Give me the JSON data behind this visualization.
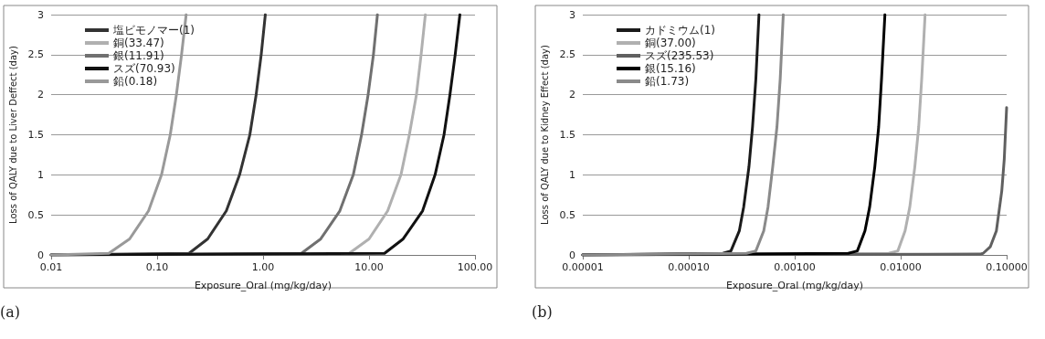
{
  "chart_data": [
    {
      "type": "line",
      "xlabel": "Exposure_Oral (mg/kg/day)",
      "ylabel": "Loss of QALY due to Liver Deffect (day)",
      "annotations": [
        "(a)"
      ],
      "log": "x",
      "grid": "y",
      "legend": "top left",
      "marker": "none",
      "line_style": "solid",
      "xlim": [
        0.01,
        100
      ],
      "xticks": [
        {
          "value": 0.01,
          "label": "0.01"
        },
        {
          "value": 0.1,
          "label": "0.10"
        },
        {
          "value": 1,
          "label": "1.00"
        },
        {
          "value": 10,
          "label": "10.00"
        },
        {
          "value": 100,
          "label": "100.00"
        }
      ],
      "ylim": [
        0,
        3
      ],
      "yticks": [
        0,
        0.5,
        1,
        1.5,
        2,
        2.5,
        3
      ],
      "series": [
        {
          "name": "塩ビモノマー(1)",
          "color": "#333333",
          "x": [
            0.01,
            0.2,
            0.3,
            0.45,
            0.6,
            0.75,
            0.86,
            0.96,
            1.05
          ],
          "values": [
            0,
            0.02,
            0.2,
            0.55,
            1,
            1.5,
            2,
            2.5,
            3
          ]
        },
        {
          "name": "銅(33.47)",
          "color": "#b0b0b0",
          "x": [
            6.5,
            10,
            15,
            20,
            24,
            28,
            31,
            34
          ],
          "values": [
            0.02,
            0.2,
            0.55,
            1,
            1.5,
            2,
            2.5,
            3
          ]
        },
        {
          "name": "銀(11.91)",
          "color": "#707070",
          "x": [
            0.01,
            2.3,
            3.5,
            5.3,
            7.1,
            8.5,
            9.8,
            11,
            12
          ],
          "values": [
            0,
            0.02,
            0.2,
            0.55,
            1,
            1.5,
            2,
            2.5,
            3
          ]
        },
        {
          "name": "スズ(70.93)",
          "color": "#111111",
          "x": [
            0.01,
            14,
            21,
            32,
            42,
            51,
            58,
            65,
            72
          ],
          "values": [
            0,
            0.02,
            0.2,
            0.55,
            1,
            1.5,
            2,
            2.5,
            3
          ]
        },
        {
          "name": "鉛(0.18)",
          "color": "#999999",
          "x": [
            0.01,
            0.035,
            0.055,
            0.083,
            0.11,
            0.133,
            0.152,
            0.17,
            0.188
          ],
          "values": [
            0,
            0.02,
            0.2,
            0.55,
            1,
            1.5,
            2,
            2.5,
            3
          ]
        }
      ]
    },
    {
      "type": "line",
      "xlabel": "Exposure_Oral (mg/kg/day)",
      "ylabel": "Loss of QALY due to Kidney Effect (day)",
      "annotations": [
        "(b)"
      ],
      "log": "x",
      "grid": "y",
      "legend": "top left",
      "marker": "none",
      "line_style": "solid",
      "xlim": [
        1e-05,
        0.1
      ],
      "xticks": [
        {
          "value": 1e-05,
          "label": "0.00001"
        },
        {
          "value": 0.0001,
          "label": "0.00010"
        },
        {
          "value": 0.001,
          "label": "0.00100"
        },
        {
          "value": 0.01,
          "label": "0.01000"
        },
        {
          "value": 0.1,
          "label": "0.10000"
        }
      ],
      "ylim": [
        0,
        3
      ],
      "yticks": [
        0,
        0.5,
        1,
        1.5,
        2,
        2.5,
        3
      ],
      "series": [
        {
          "name": "カドミウム(1)",
          "color": "#1a1a1a",
          "x": [
            1e-05,
            0.00021,
            0.00025,
            0.0003,
            0.00033,
            0.00037,
            0.0004,
            0.00043,
            0.00046
          ],
          "values": [
            0,
            0.02,
            0.05,
            0.3,
            0.6,
            1.1,
            1.6,
            2.2,
            3
          ]
        },
        {
          "name": "銅(37.00)",
          "color": "#b0b0b0",
          "x": [
            1e-05,
            0.0077,
            0.0094,
            0.011,
            0.0122,
            0.0136,
            0.0148,
            0.0158,
            0.017
          ],
          "values": [
            0,
            0.02,
            0.05,
            0.3,
            0.6,
            1.1,
            1.6,
            2.2,
            3
          ]
        },
        {
          "name": "スズ(235.53)",
          "color": "#606060",
          "x": [
            1e-05,
            0.056,
            0.06,
            0.07,
            0.08,
            0.09,
            0.095,
            0.1
          ],
          "values": [
            0,
            0.01,
            0.02,
            0.1,
            0.3,
            0.8,
            1.2,
            1.84
          ]
        },
        {
          "name": "銀(15.16)",
          "color": "#000000",
          "x": [
            1e-05,
            0.0032,
            0.0039,
            0.0046,
            0.0051,
            0.0057,
            0.0062,
            0.0066,
            0.0071
          ],
          "values": [
            0,
            0.02,
            0.05,
            0.3,
            0.6,
            1.1,
            1.6,
            2.2,
            3
          ]
        },
        {
          "name": "鉛(1.73)",
          "color": "#8a8a8a",
          "x": [
            1e-05,
            0.00035,
            0.00043,
            0.00051,
            0.00056,
            0.00062,
            0.00068,
            0.00073,
            0.00078
          ],
          "values": [
            0,
            0.02,
            0.05,
            0.3,
            0.6,
            1.1,
            1.6,
            2.2,
            3
          ]
        }
      ]
    }
  ]
}
